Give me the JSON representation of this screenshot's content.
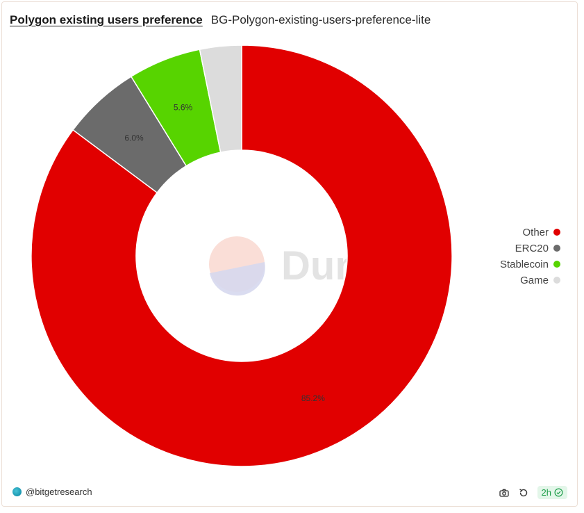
{
  "header": {
    "title": "Polygon existing users preference",
    "subtitle": "BG-Polygon-existing-users-preference-lite"
  },
  "watermark": {
    "text": "Dune"
  },
  "chart_data": {
    "type": "pie",
    "donut": true,
    "title": "Polygon existing users preference",
    "subtitle": "BG-Polygon-existing-users-preference-lite",
    "legend_position": "right",
    "slices": [
      {
        "label": "Other",
        "value": 85.2,
        "label_text": "85.2%",
        "color": "#e10000"
      },
      {
        "label": "ERC20",
        "value": 6.0,
        "label_text": "6.0%",
        "color": "#6b6b6b"
      },
      {
        "label": "Stablecoin",
        "value": 5.6,
        "label_text": "5.6%",
        "color": "#57d400"
      },
      {
        "label": "Game",
        "value": 3.2,
        "label_text": "",
        "color": "#dcdcdc"
      }
    ]
  },
  "footer": {
    "author": "@bitgetresearch",
    "refresh_badge": "2h",
    "icons": [
      "camera-icon",
      "refresh-icon",
      "check-circle-icon"
    ]
  }
}
